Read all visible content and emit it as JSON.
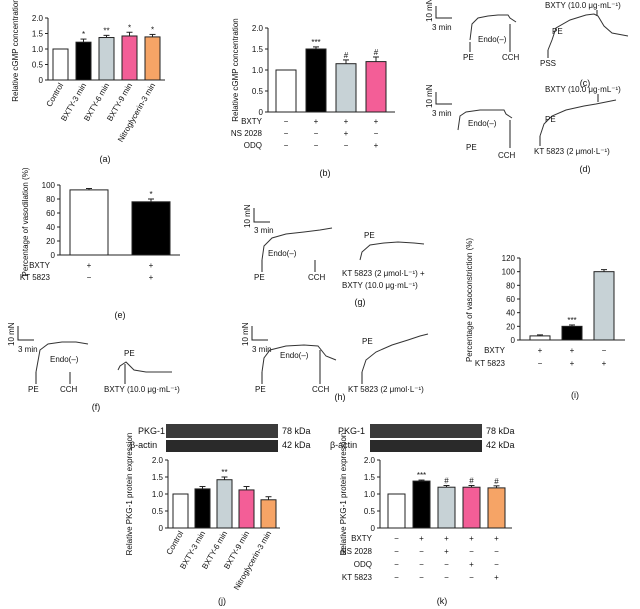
{
  "colors": {
    "control": "#ffffff",
    "t3": "#000000",
    "t6": "#c7d2d6",
    "t9": "#f35e97",
    "nitro": "#f6a466",
    "edge": "#222222"
  },
  "chart_data": [
    {
      "panel": "a",
      "type": "bar",
      "ylabel": "Relative cGMP concentration",
      "ylim": [
        0,
        2.0
      ],
      "yticks": [
        "0",
        "0.5",
        "1.0",
        "1.5",
        "2.0"
      ],
      "categories": [
        "Control",
        "BXTY-3 min",
        "BXTY-6 min",
        "BXTY-9 min",
        "Nitroglycerin-3 min"
      ],
      "values": [
        1.0,
        1.22,
        1.37,
        1.42,
        1.39
      ],
      "errors": [
        0,
        0.1,
        0.07,
        0.12,
        0.08
      ],
      "sig": [
        "",
        "*",
        "**",
        "*",
        "*"
      ]
    },
    {
      "panel": "b",
      "type": "bar",
      "ylabel": "Relative cGMP concentration",
      "ylim": [
        0,
        2.0
      ],
      "yticks": [
        "0",
        "0.5",
        "1.0",
        "1.5",
        "2.0"
      ],
      "values": [
        1.0,
        1.5,
        1.15,
        1.2
      ],
      "errors": [
        0,
        0.05,
        0.09,
        0.11
      ],
      "sig": [
        "",
        "***",
        "#",
        "#"
      ],
      "rows": [
        {
          "label": "BXTY",
          "signs": [
            "−",
            "+",
            "+",
            "+"
          ]
        },
        {
          "label": "NS 2028",
          "signs": [
            "−",
            "−",
            "+",
            "−"
          ]
        },
        {
          "label": "ODQ",
          "signs": [
            "−",
            "−",
            "−",
            "+"
          ]
        }
      ]
    },
    {
      "panel": "e",
      "type": "bar",
      "ylabel": "Percentage of vasodilation (%)",
      "ylim": [
        0,
        100
      ],
      "yticks": [
        "0",
        "20",
        "40",
        "60",
        "80",
        "100"
      ],
      "values": [
        93,
        76
      ],
      "errors": [
        2,
        4
      ],
      "sig": [
        "",
        "*"
      ],
      "rows": [
        {
          "label": "BXTY",
          "signs": [
            "+",
            "+"
          ]
        },
        {
          "label": "KT 5823",
          "signs": [
            "−",
            "+"
          ]
        }
      ]
    },
    {
      "panel": "i",
      "type": "bar",
      "ylabel": "Percentage of vasoconstriction (%)",
      "ylim": [
        0,
        120
      ],
      "yticks": [
        "0",
        "20",
        "40",
        "60",
        "80",
        "100",
        "120"
      ],
      "values": [
        6,
        20,
        100
      ],
      "errors": [
        1.5,
        2,
        3
      ],
      "sig": [
        "",
        "***",
        ""
      ],
      "rows": [
        {
          "label": "BXTY",
          "signs": [
            "+",
            "+",
            "−"
          ]
        },
        {
          "label": "KT 5823",
          "signs": [
            "−",
            "+",
            "+"
          ]
        }
      ]
    },
    {
      "panel": "j",
      "type": "bar",
      "ylabel": "Relative PKG-1 protein expression",
      "ylim": [
        0,
        2.0
      ],
      "yticks": [
        "0",
        "0.5",
        "1.0",
        "1.5",
        "2.0"
      ],
      "categories": [
        "Control",
        "BXTY-3 min",
        "BXTY-6 min",
        "BXTY-9 min",
        "Nitroglycerin-3 min"
      ],
      "values": [
        1.0,
        1.15,
        1.42,
        1.12,
        0.83
      ],
      "errors": [
        0,
        0.07,
        0.08,
        0.1,
        0.09
      ],
      "sig": [
        "",
        "",
        "**",
        "",
        ""
      ],
      "blot": [
        "PKG-1",
        "β-actin",
        "78 kDa",
        "42 kDa"
      ]
    },
    {
      "panel": "k",
      "type": "bar",
      "ylabel": "Relative PKG-1 protein expression",
      "ylim": [
        0,
        2.0
      ],
      "yticks": [
        "0",
        "0.5",
        "1.0",
        "1.5",
        "2.0"
      ],
      "values": [
        1.0,
        1.38,
        1.2,
        1.2,
        1.18
      ],
      "errors": [
        0,
        0.03,
        0.05,
        0.05,
        0.06
      ],
      "sig": [
        "",
        "***",
        "#",
        "#",
        "#"
      ],
      "blot": [
        "PKG-1",
        "β-actin",
        "78 kDa",
        "42 kDa"
      ],
      "rows": [
        {
          "label": "BXTY",
          "signs": [
            "−",
            "+",
            "+",
            "+",
            "+"
          ]
        },
        {
          "label": "NS 2028",
          "signs": [
            "−",
            "−",
            "+",
            "−",
            "−"
          ]
        },
        {
          "label": "ODQ",
          "signs": [
            "−",
            "−",
            "−",
            "+",
            "−"
          ]
        },
        {
          "label": "KT 5823",
          "signs": [
            "−",
            "−",
            "−",
            "−",
            "+"
          ]
        }
      ]
    }
  ],
  "traces": {
    "c": {
      "scale_y": "10 mN",
      "scale_x": "3 min",
      "endo": "Endo(–)",
      "pe1": "PE",
      "cch": "CCH",
      "pss": "PSS",
      "pe2": "PE",
      "drug": "BXTY (10.0 μg·mL⁻¹)"
    },
    "d": {
      "scale_y": "10 mN",
      "scale_x": "3 min",
      "endo": "Endo(–)",
      "pe1": "PE",
      "cch": "CCH",
      "pe2": "PE",
      "kt": "KT 5823 (2 μmol·L⁻¹)",
      "drug": "BXTY (10.0 μg·mL⁻¹)"
    },
    "g": {
      "scale_y": "10 mN",
      "scale_x": "3 min",
      "endo": "Endo(–)",
      "pe1": "PE",
      "cch": "CCH",
      "pe2": "PE",
      "combo1": "KT 5823 (2 μmol·L⁻¹) +",
      "combo2": "BXTY (10.0 μg·mL⁻¹)"
    },
    "f": {
      "scale_y": "10 mN",
      "scale_x": "3 min",
      "endo": "Endo(–)",
      "pe1": "PE",
      "cch": "CCH",
      "pe2": "PE",
      "drug": "BXTY (10.0 μg·mL⁻¹)"
    },
    "h": {
      "scale_y": "10 mN",
      "scale_x": "3 min",
      "endo": "Endo(–)",
      "pe1": "PE",
      "cch": "CCH",
      "pe2": "PE",
      "kt": "KT 5823 (2 μmol·L⁻¹)"
    }
  },
  "panel_labels": [
    "(a)",
    "(b)",
    "(c)",
    "(d)",
    "(e)",
    "(f)",
    "(g)",
    "(h)",
    "(i)",
    "(j)",
    "(k)"
  ]
}
